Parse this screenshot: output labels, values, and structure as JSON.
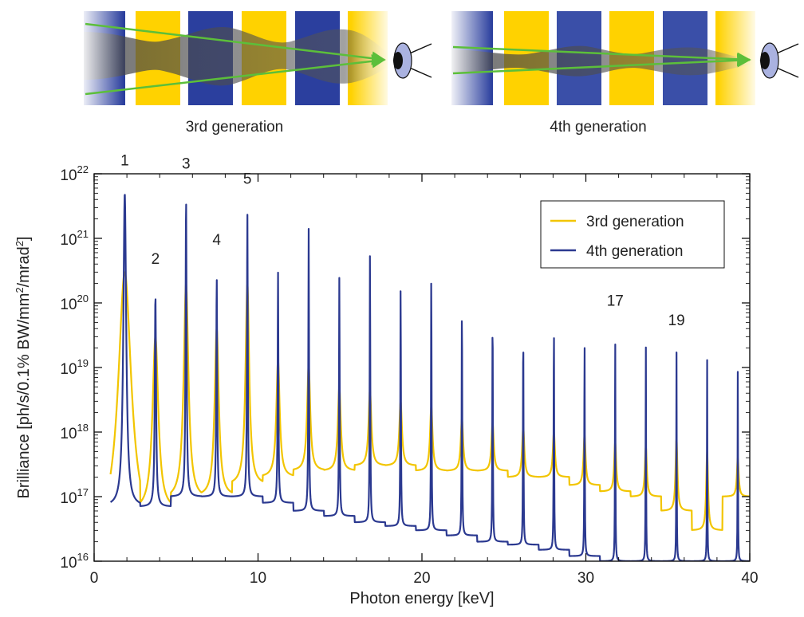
{
  "diagram": {
    "panels": [
      {
        "caption": "3rd generation"
      },
      {
        "caption": "4th generation"
      }
    ]
  },
  "chart_data": {
    "type": "line",
    "xlabel": "Photon energy [keV]",
    "ylabel": "Brilliance [ph/s/0.1% BW/mm²/mrad²]",
    "xlim": [
      0,
      40
    ],
    "ylim": [
      1e+16,
      1e+22
    ],
    "yscale": "log",
    "x_ticks": [
      0,
      10,
      20,
      30,
      40
    ],
    "y_ticks": [
      1e+16,
      1e+17,
      1e+18,
      1e+19,
      1e+20,
      1e+21,
      1e+22
    ],
    "y_tick_labels": [
      {
        "base": "10",
        "exp": "16"
      },
      {
        "base": "10",
        "exp": "17"
      },
      {
        "base": "10",
        "exp": "18"
      },
      {
        "base": "10",
        "exp": "19"
      },
      {
        "base": "10",
        "exp": "20"
      },
      {
        "base": "10",
        "exp": "21"
      },
      {
        "base": "10",
        "exp": "22"
      }
    ],
    "legend_position": "top-right",
    "grid": false,
    "series": [
      {
        "name": "3rd generation",
        "color": "#f2c500",
        "fundamental_keV": 1.87,
        "harmonics": [
          1,
          2,
          3,
          4,
          5,
          6,
          7,
          8,
          9,
          10,
          11,
          12,
          13,
          14,
          15,
          16,
          17,
          18,
          19,
          20,
          21
        ],
        "peak_brilliance": [
          3e+20,
          3e+19,
          2e+20,
          4e+19,
          2e+20,
          1.3e+19,
          1.1e+19,
          5e+18,
          4.5e+18,
          3e+18,
          2.5e+18,
          1.6e+18,
          1.4e+18,
          1.2e+18,
          1e+18,
          9e+17,
          7e+17,
          6e+17,
          8e+17,
          5e+17,
          4e+17
        ],
        "min_brilliance": [
          2.5e+16,
          6e+16,
          9e+16,
          1e+17,
          1.5e+17,
          2e+17,
          2.5e+17,
          2.5e+17,
          3e+17,
          3e+17,
          2.5e+17,
          2.5e+17,
          2.5e+17,
          2e+17,
          2e+17,
          1.5e+17,
          1.2e+17,
          1e+17,
          6e+16,
          3e+16,
          1e+17
        ]
      },
      {
        "name": "4th generation",
        "color": "#2b3990",
        "fundamental_keV": 1.87,
        "harmonics": [
          1,
          2,
          3,
          4,
          5,
          6,
          7,
          8,
          9,
          10,
          11,
          12,
          13,
          14,
          15,
          16,
          17,
          18,
          19,
          20,
          21
        ],
        "peak_brilliance": [
          5e+21,
          1.3e+20,
          4e+21,
          2.5e+20,
          2.5e+21,
          3e+20,
          1.4e+21,
          2.5e+20,
          6e+20,
          2e+20,
          3.5e+20,
          1.2e+20,
          1e+20,
          6e+19,
          8e+19,
          4e+19,
          3.5e+19,
          2.5e+19,
          1.8e+19,
          1.3e+19,
          9e+18
        ],
        "min_brilliance": [
          7e+16,
          7e+16,
          1e+17,
          1e+17,
          1e+17,
          8e+16,
          6e+16,
          5e+16,
          4e+16,
          3.5e+16,
          3e+16,
          2.5e+16,
          2e+16,
          1.8e+16,
          1.5e+16,
          1.2e+16,
          1e+16,
          1e+16,
          1e+16,
          1e+16,
          1e+16
        ]
      }
    ],
    "annotations": [
      {
        "text": "1",
        "x": 1.87,
        "y": 1.35e+22
      },
      {
        "text": "2",
        "x": 3.74,
        "y": 4e+20
      },
      {
        "text": "3",
        "x": 5.61,
        "y": 1.2e+22
      },
      {
        "text": "4",
        "x": 7.48,
        "y": 8e+20
      },
      {
        "text": "5",
        "x": 9.35,
        "y": 7e+21
      },
      {
        "text": "17",
        "x": 31.79,
        "y": 9e+19
      },
      {
        "text": "19",
        "x": 35.53,
        "y": 4.5e+19
      }
    ]
  }
}
